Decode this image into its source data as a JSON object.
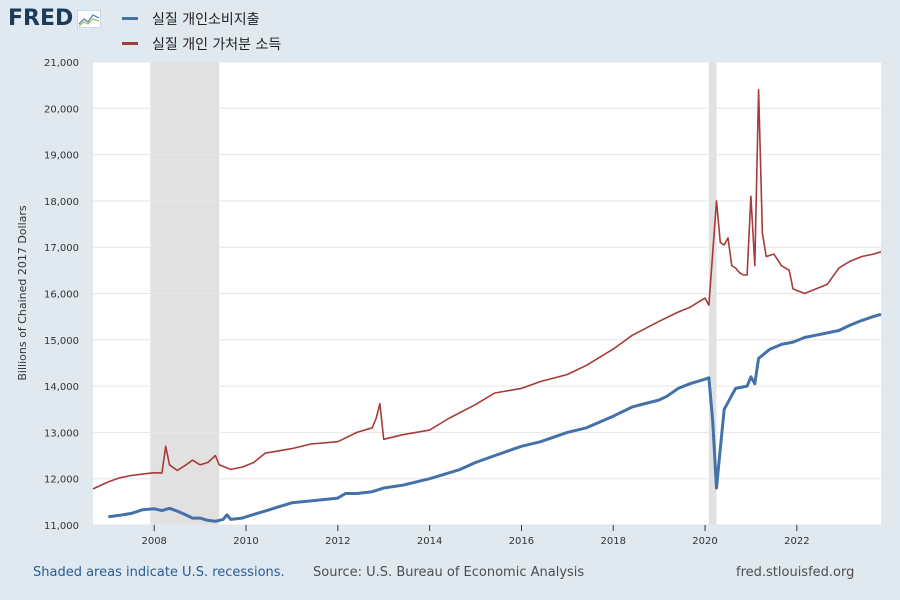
{
  "brand": {
    "logo_text": "FRED"
  },
  "legend": [
    {
      "label": "실질 개인소비지출",
      "color": "#4472a8"
    },
    {
      "label": "실질 개인 가처분 소득",
      "color": "#a73a3a"
    }
  ],
  "footer": {
    "recession_note": "Shaded areas indicate U.S. recessions.",
    "source": "Source: U.S. Bureau of Economic Analysis",
    "site": "fred.stlouisfed.org"
  },
  "chart_data": {
    "type": "line",
    "ylabel": "Billions of Chained 2017 Dollars",
    "xlim": [
      "2006-09-01",
      "2023-11-01"
    ],
    "ylim": [
      11000,
      21000
    ],
    "y_ticks": [
      11000,
      12000,
      13000,
      14000,
      15000,
      16000,
      17000,
      18000,
      19000,
      20000,
      21000
    ],
    "y_tick_labels": [
      "11,000",
      "12,000",
      "13,000",
      "14,000",
      "15,000",
      "16,000",
      "17,000",
      "18,000",
      "19,000",
      "20,000",
      "21,000"
    ],
    "x_tick_labels": [
      "2008",
      "2010",
      "2012",
      "2014",
      "2016",
      "2018",
      "2020",
      "2022"
    ],
    "x_ticks": [
      "2008-01-01",
      "2010-01-01",
      "2012-01-01",
      "2014-01-01",
      "2016-01-01",
      "2018-01-01",
      "2020-01-01",
      "2022-01-01"
    ],
    "grid": true,
    "recessions": [
      {
        "start": "2007-12-01",
        "end": "2009-06-01"
      },
      {
        "start": "2020-02-01",
        "end": "2020-04-01"
      }
    ],
    "series": [
      {
        "name": "실질 개인소비지출",
        "color": "#4472a8",
        "points": [
          [
            "2007-01-01",
            11180
          ],
          [
            "2007-04-01",
            11210
          ],
          [
            "2007-07-01",
            11250
          ],
          [
            "2007-10-01",
            11330
          ],
          [
            "2008-01-01",
            11350
          ],
          [
            "2008-03-01",
            11310
          ],
          [
            "2008-05-01",
            11360
          ],
          [
            "2008-07-01",
            11300
          ],
          [
            "2008-09-01",
            11230
          ],
          [
            "2008-11-01",
            11150
          ],
          [
            "2009-01-01",
            11150
          ],
          [
            "2009-03-01",
            11100
          ],
          [
            "2009-05-01",
            11080
          ],
          [
            "2009-07-01",
            11120
          ],
          [
            "2009-08-01",
            11220
          ],
          [
            "2009-09-01",
            11120
          ],
          [
            "2009-12-01",
            11150
          ],
          [
            "2010-03-01",
            11230
          ],
          [
            "2010-06-01",
            11300
          ],
          [
            "2010-09-01",
            11380
          ],
          [
            "2011-01-01",
            11480
          ],
          [
            "2011-06-01",
            11520
          ],
          [
            "2012-01-01",
            11580
          ],
          [
            "2012-03-01",
            11680
          ],
          [
            "2012-06-01",
            11680
          ],
          [
            "2012-10-01",
            11720
          ],
          [
            "2013-01-01",
            11800
          ],
          [
            "2013-06-01",
            11860
          ],
          [
            "2014-01-01",
            12000
          ],
          [
            "2014-03-01",
            12050
          ],
          [
            "2014-09-01",
            12200
          ],
          [
            "2015-01-01",
            12350
          ],
          [
            "2015-06-01",
            12500
          ],
          [
            "2016-01-01",
            12700
          ],
          [
            "2016-06-01",
            12800
          ],
          [
            "2017-01-01",
            13000
          ],
          [
            "2017-06-01",
            13100
          ],
          [
            "2018-01-01",
            13350
          ],
          [
            "2018-06-01",
            13550
          ],
          [
            "2019-01-01",
            13700
          ],
          [
            "2019-03-01",
            13780
          ],
          [
            "2019-06-01",
            13950
          ],
          [
            "2019-09-01",
            14050
          ],
          [
            "2020-01-01",
            14150
          ],
          [
            "2020-02-01",
            14180
          ],
          [
            "2020-03-01",
            13250
          ],
          [
            "2020-04-01",
            11800
          ],
          [
            "2020-05-01",
            12650
          ],
          [
            "2020-06-01",
            13500
          ],
          [
            "2020-09-01",
            13950
          ],
          [
            "2020-12-01",
            14000
          ],
          [
            "2021-01-01",
            14200
          ],
          [
            "2021-02-01",
            14050
          ],
          [
            "2021-03-01",
            14600
          ],
          [
            "2021-06-01",
            14800
          ],
          [
            "2021-09-01",
            14900
          ],
          [
            "2021-12-01",
            14950
          ],
          [
            "2022-03-01",
            15050
          ],
          [
            "2022-06-01",
            15100
          ],
          [
            "2022-09-01",
            15150
          ],
          [
            "2022-12-01",
            15200
          ],
          [
            "2023-03-01",
            15320
          ],
          [
            "2023-06-01",
            15420
          ],
          [
            "2023-09-01",
            15500
          ],
          [
            "2023-11-01",
            15550
          ]
        ]
      },
      {
        "name": "실질 개인 가처분 소득",
        "color": "#a73a3a",
        "points": [
          [
            "2006-09-01",
            11780
          ],
          [
            "2007-01-01",
            11930
          ],
          [
            "2007-04-01",
            12020
          ],
          [
            "2007-07-01",
            12070
          ],
          [
            "2007-10-01",
            12100
          ],
          [
            "2008-01-01",
            12130
          ],
          [
            "2008-03-01",
            12120
          ],
          [
            "2008-04-01",
            12700
          ],
          [
            "2008-05-01",
            12300
          ],
          [
            "2008-07-01",
            12180
          ],
          [
            "2008-09-01",
            12280
          ],
          [
            "2008-11-01",
            12400
          ],
          [
            "2009-01-01",
            12300
          ],
          [
            "2009-03-01",
            12350
          ],
          [
            "2009-05-01",
            12500
          ],
          [
            "2009-06-01",
            12300
          ],
          [
            "2009-09-01",
            12200
          ],
          [
            "2009-12-01",
            12250
          ],
          [
            "2010-03-01",
            12350
          ],
          [
            "2010-06-01",
            12550
          ],
          [
            "2011-01-01",
            12650
          ],
          [
            "2011-06-01",
            12750
          ],
          [
            "2012-01-01",
            12800
          ],
          [
            "2012-06-01",
            13000
          ],
          [
            "2012-10-01",
            13100
          ],
          [
            "2012-11-01",
            13300
          ],
          [
            "2012-12-01",
            13620
          ],
          [
            "2013-01-01",
            12850
          ],
          [
            "2013-06-01",
            12950
          ],
          [
            "2014-01-01",
            13050
          ],
          [
            "2014-06-01",
            13300
          ],
          [
            "2015-01-01",
            13600
          ],
          [
            "2015-06-01",
            13850
          ],
          [
            "2016-01-01",
            13950
          ],
          [
            "2016-06-01",
            14100
          ],
          [
            "2017-01-01",
            14250
          ],
          [
            "2017-06-01",
            14450
          ],
          [
            "2018-01-01",
            14800
          ],
          [
            "2018-06-01",
            15100
          ],
          [
            "2019-01-01",
            15400
          ],
          [
            "2019-06-01",
            15600
          ],
          [
            "2019-09-01",
            15700
          ],
          [
            "2020-01-01",
            15900
          ],
          [
            "2020-02-01",
            15750
          ],
          [
            "2020-04-01",
            18000
          ],
          [
            "2020-05-01",
            17100
          ],
          [
            "2020-06-01",
            17050
          ],
          [
            "2020-07-01",
            17200
          ],
          [
            "2020-08-01",
            16600
          ],
          [
            "2020-09-01",
            16550
          ],
          [
            "2020-10-01",
            16450
          ],
          [
            "2020-11-01",
            16400
          ],
          [
            "2020-12-01",
            16400
          ],
          [
            "2021-01-01",
            18100
          ],
          [
            "2021-02-01",
            16600
          ],
          [
            "2021-03-01",
            20400
          ],
          [
            "2021-04-01",
            17300
          ],
          [
            "2021-05-01",
            16800
          ],
          [
            "2021-07-01",
            16850
          ],
          [
            "2021-09-01",
            16600
          ],
          [
            "2021-11-01",
            16500
          ],
          [
            "2021-12-01",
            16100
          ],
          [
            "2022-03-01",
            16000
          ],
          [
            "2022-06-01",
            16100
          ],
          [
            "2022-09-01",
            16200
          ],
          [
            "2022-12-01",
            16550
          ],
          [
            "2023-01-01",
            16600
          ],
          [
            "2023-03-01",
            16700
          ],
          [
            "2023-06-01",
            16800
          ],
          [
            "2023-09-01",
            16850
          ],
          [
            "2023-11-01",
            16900
          ]
        ]
      }
    ]
  }
}
